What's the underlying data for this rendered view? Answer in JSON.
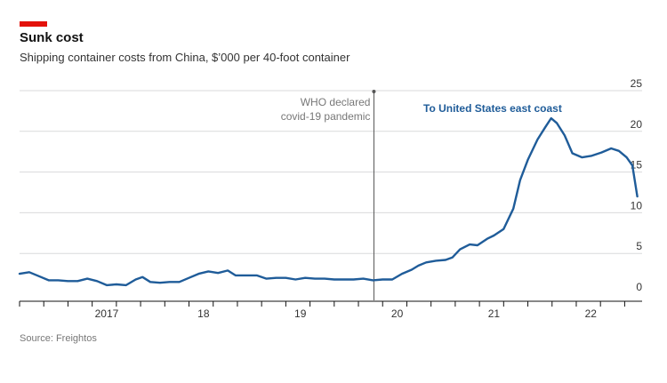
{
  "header": {
    "title": "Sunk cost",
    "subtitle": "Shipping container costs from China, $’000 per 40-foot container",
    "accent_color": "#e3120b"
  },
  "source": "Source: Freightos",
  "annotation": {
    "text_line1": "WHO declared",
    "text_line2": "covid-19 pandemic",
    "x": 2020.21
  },
  "chart_data": {
    "type": "line",
    "xlim": [
      2016.5,
      2022.95
    ],
    "ylim": [
      0,
      25
    ],
    "yticks": [
      0,
      5,
      10,
      15,
      20,
      25
    ],
    "ytick_position": "right",
    "grid": true,
    "x_tick_labels": [
      {
        "label": "2017",
        "x": 2017.0
      },
      {
        "label": "18",
        "x": 2018.0
      },
      {
        "label": "19",
        "x": 2019.0
      },
      {
        "label": "20",
        "x": 2020.0
      },
      {
        "label": "21",
        "x": 2021.0
      },
      {
        "label": "22",
        "x": 2022.0
      }
    ],
    "series": [
      {
        "name": "To United States east coast",
        "label_lines": [
          "To United States east coast"
        ],
        "color": "#1f5c99",
        "points": [
          [
            2016.55,
            2.5
          ],
          [
            2016.65,
            2.7
          ],
          [
            2016.75,
            2.2
          ],
          [
            2016.85,
            1.7
          ],
          [
            2016.95,
            1.7
          ],
          [
            2017.05,
            1.6
          ],
          [
            2017.15,
            1.6
          ],
          [
            2017.25,
            1.9
          ],
          [
            2017.35,
            1.6
          ],
          [
            2017.45,
            1.1
          ],
          [
            2017.55,
            1.2
          ],
          [
            2017.65,
            1.1
          ],
          [
            2017.75,
            1.8
          ],
          [
            2017.82,
            2.1
          ],
          [
            2017.9,
            1.5
          ],
          [
            2018.0,
            1.4
          ],
          [
            2018.1,
            1.5
          ],
          [
            2018.2,
            1.5
          ],
          [
            2018.3,
            2.0
          ],
          [
            2018.4,
            2.5
          ],
          [
            2018.5,
            2.8
          ],
          [
            2018.6,
            2.6
          ],
          [
            2018.7,
            2.9
          ],
          [
            2018.78,
            2.3
          ],
          [
            2018.9,
            2.3
          ],
          [
            2019.0,
            2.3
          ],
          [
            2019.1,
            1.9
          ],
          [
            2019.2,
            2.0
          ],
          [
            2019.3,
            2.0
          ],
          [
            2019.4,
            1.8
          ],
          [
            2019.5,
            2.0
          ],
          [
            2019.6,
            1.9
          ],
          [
            2019.7,
            1.9
          ],
          [
            2019.8,
            1.8
          ],
          [
            2019.9,
            1.8
          ],
          [
            2020.0,
            1.8
          ],
          [
            2020.1,
            1.9
          ],
          [
            2020.2,
            1.7
          ],
          [
            2020.3,
            1.8
          ],
          [
            2020.4,
            1.8
          ],
          [
            2020.5,
            2.5
          ],
          [
            2020.6,
            3.0
          ],
          [
            2020.67,
            3.5
          ],
          [
            2020.75,
            3.9
          ],
          [
            2020.85,
            4.1
          ],
          [
            2020.95,
            4.2
          ],
          [
            2021.02,
            4.5
          ],
          [
            2021.1,
            5.5
          ],
          [
            2021.2,
            6.1
          ],
          [
            2021.28,
            6.0
          ],
          [
            2021.38,
            6.8
          ],
          [
            2021.45,
            7.2
          ],
          [
            2021.55,
            8.0
          ],
          [
            2021.65,
            10.5
          ],
          [
            2021.72,
            14.0
          ],
          [
            2021.8,
            16.5
          ],
          [
            2021.9,
            19.0
          ],
          [
            2021.98,
            20.5
          ],
          [
            2022.04,
            21.6
          ],
          [
            2022.1,
            21.0
          ],
          [
            2022.18,
            19.5
          ],
          [
            2022.26,
            17.3
          ],
          [
            2022.36,
            16.8
          ],
          [
            2022.46,
            17.0
          ],
          [
            2022.56,
            17.4
          ],
          [
            2022.66,
            17.9
          ],
          [
            2022.74,
            17.6
          ],
          [
            2022.82,
            16.8
          ],
          [
            2022.88,
            15.8
          ],
          [
            2022.93,
            12.0
          ]
        ],
        "note": "x positions along the time axis are in fractional years"
      }
    ]
  }
}
